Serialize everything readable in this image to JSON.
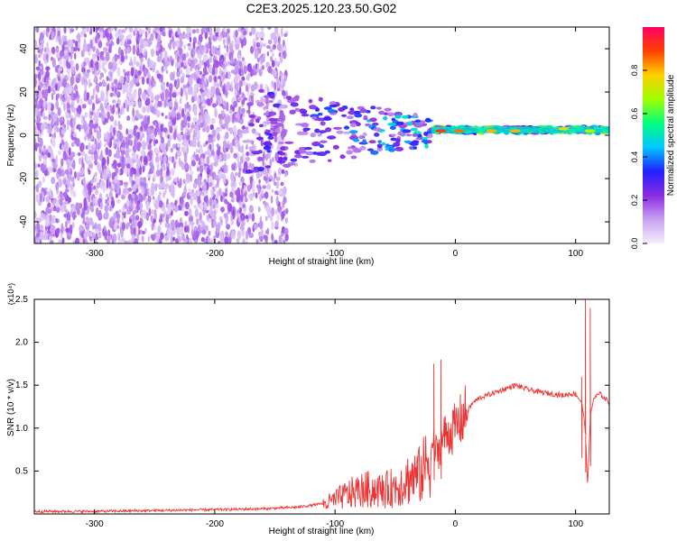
{
  "figure_title": "C2E3.2025.120.23.50.G02",
  "chart_data": [
    {
      "type": "heatmap",
      "title": "C2E3.2025.120.23.50.G02",
      "xlabel": "Height of straight line (km)",
      "ylabel": "Frequency (Hz)",
      "xlim": [
        -350,
        128
      ],
      "ylim": [
        -50,
        50
      ],
      "xticks": [
        -300,
        -200,
        -100,
        0,
        100
      ],
      "xtick_labels": [
        "-300",
        "-200",
        "-100",
        "0",
        "100"
      ],
      "yticks": [
        -40,
        -20,
        0,
        20,
        40
      ],
      "ytick_labels": [
        "-40",
        "-20",
        "0",
        "20",
        "40"
      ],
      "colorbar": {
        "label": "Normalized spectral amplitude",
        "range": [
          0,
          1
        ],
        "ticks": [
          0.0,
          0.2,
          0.4,
          0.6,
          0.8
        ],
        "tick_labels": [
          "0.0",
          "0.2",
          "0.4",
          "0.6",
          "0.8"
        ],
        "colors": [
          "#f4eefc",
          "#c8a2f0",
          "#8a2be2",
          "#2020ff",
          "#00c8ff",
          "#00ff80",
          "#a0ff00",
          "#ffd000",
          "#ff4000",
          "#ff0060"
        ]
      },
      "regions": [
        {
          "x": [
            -350,
            -140
          ],
          "y": [
            -50,
            50
          ],
          "amplitude": 0.15,
          "pattern": "broadband noise"
        },
        {
          "x": [
            -175,
            -20
          ],
          "y": [
            -20,
            20
          ],
          "amplitude": 0.3,
          "pattern": "spectral band narrowing toward 0 Hz"
        },
        {
          "x": [
            -20,
            128
          ],
          "y": [
            1,
            4
          ],
          "amplitude": 0.55,
          "pattern": "narrow line near 2 Hz"
        }
      ],
      "line_peaks": [
        {
          "x": -12,
          "y": 2,
          "amplitude": 0.9
        },
        {
          "x": 3,
          "y": 2,
          "amplitude": 0.85
        },
        {
          "x": 30,
          "y": 2,
          "amplitude": 0.8
        },
        {
          "x": 50,
          "y": 2,
          "amplitude": 0.8
        },
        {
          "x": 90,
          "y": 3,
          "amplitude": 0.75
        },
        {
          "x": 112,
          "y": 2,
          "amplitude": 0.7
        }
      ]
    },
    {
      "type": "line",
      "xlabel": "Height of straight line (km)",
      "ylabel": "SNR (10 * v/v)",
      "y_multiplier": "(x10⁴)",
      "xlim": [
        -350,
        128
      ],
      "ylim": [
        0,
        2.5
      ],
      "xticks": [
        -300,
        -200,
        -100,
        0,
        100
      ],
      "xtick_labels": [
        "-300",
        "-200",
        "-100",
        "0",
        "100"
      ],
      "yticks": [
        0.5,
        1.0,
        1.5,
        2.0,
        2.5
      ],
      "ytick_labels": [
        "0.5",
        "1.0",
        "1.5",
        "2.0",
        "2.5"
      ],
      "color": "#ee3333",
      "series": [
        {
          "x": [
            -350,
            -300,
            -250,
            -200,
            -160,
            -130,
            -110,
            -100,
            -90,
            -80,
            -70,
            -60,
            -50,
            -40,
            -30,
            -25,
            -20,
            -15,
            -10,
            -5,
            0,
            5,
            10,
            15,
            20,
            30,
            40,
            50,
            60,
            70,
            80,
            90,
            95,
            100,
            105,
            108,
            110,
            112,
            115,
            120,
            128
          ],
          "values": [
            0.03,
            0.03,
            0.04,
            0.05,
            0.06,
            0.08,
            0.12,
            0.18,
            0.25,
            0.3,
            0.32,
            0.3,
            0.35,
            0.45,
            0.5,
            0.6,
            0.85,
            0.7,
            0.9,
            0.95,
            1.0,
            1.1,
            1.2,
            1.3,
            1.35,
            1.4,
            1.45,
            1.5,
            1.45,
            1.42,
            1.4,
            1.38,
            1.4,
            1.4,
            1.3,
            1.0,
            0.3,
            1.1,
            1.35,
            1.4,
            1.3
          ]
        }
      ],
      "spikes": [
        {
          "x": -18,
          "y": 1.75
        },
        {
          "x": -12,
          "y": 1.8
        },
        {
          "x": 105,
          "y": 1.6
        },
        {
          "x": 108,
          "y": 2.5
        },
        {
          "x": 112,
          "y": 2.4
        }
      ]
    }
  ]
}
